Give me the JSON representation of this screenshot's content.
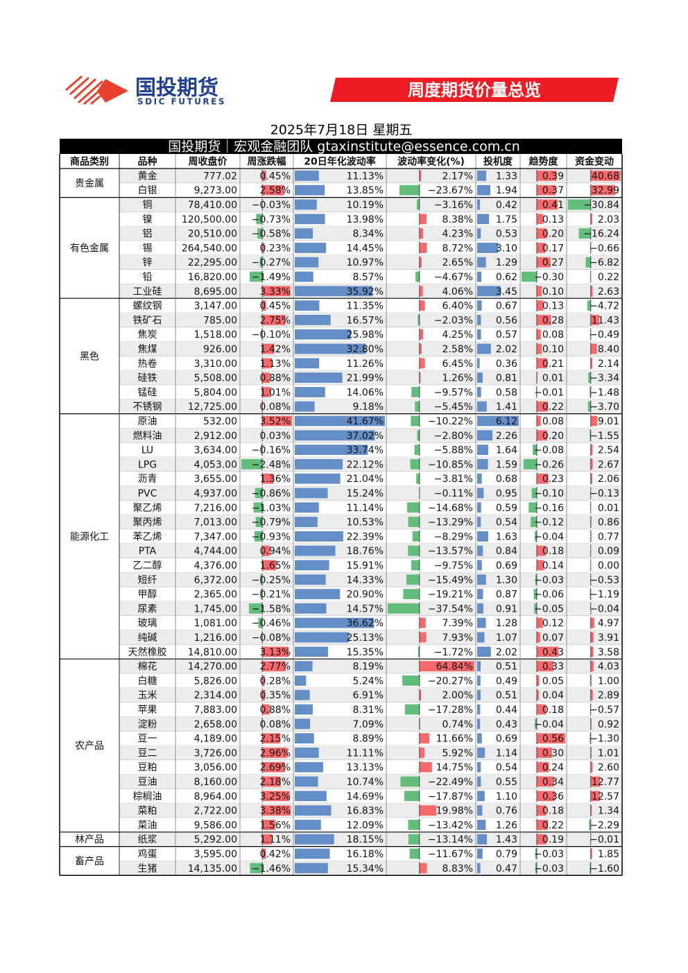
{
  "header": {
    "logo_cn": "国投期货",
    "logo_en": "SDIC FUTURES",
    "banner": "周度期货价量总览",
    "date": "2025年7月18日 星期五",
    "team": "国投期货｜宏观金融团队 gtaxinstitute@essence.com.cn"
  },
  "table": {
    "columns": [
      "商品类别",
      "品种",
      "周收盘价",
      "周涨跌幅",
      "20日年化波动率",
      "波动率变化(%)",
      "投机度",
      "趋势度",
      "资金变动"
    ],
    "groups": [
      {
        "category": "贵金属",
        "rows": [
          [
            "黄金",
            "777.02",
            "0.45%",
            "11.13%",
            "2.17%",
            "1.33",
            "0.39",
            "40.68"
          ],
          [
            "白银",
            "9,273.00",
            "2.58%",
            "13.85%",
            "−23.67%",
            "1.94",
            "0.37",
            "32.99"
          ]
        ]
      },
      {
        "category": "有色金属",
        "rows": [
          [
            "铜",
            "78,410.00",
            "−0.03%",
            "10.19%",
            "−3.16%",
            "0.42",
            "0.41",
            "−30.84"
          ],
          [
            "镍",
            "120,500.00",
            "−0.73%",
            "13.98%",
            "8.38%",
            "1.75",
            "0.13",
            "2.03"
          ],
          [
            "铝",
            "20,510.00",
            "−0.58%",
            "8.34%",
            "4.23%",
            "0.53",
            "0.20",
            "−16.24"
          ],
          [
            "锡",
            "264,540.00",
            "0.23%",
            "14.45%",
            "8.72%",
            "3.10",
            "0.17",
            "−0.66"
          ],
          [
            "锌",
            "22,295.00",
            "−0.27%",
            "10.97%",
            "2.65%",
            "1.29",
            "0.27",
            "−6.82"
          ],
          [
            "铅",
            "16,820.00",
            "−1.49%",
            "8.57%",
            "−4.67%",
            "0.62",
            "−0.30",
            "0.22"
          ],
          [
            "工业硅",
            "8,695.00",
            "3.33%",
            "35.92%",
            "4.06%",
            "3.45",
            "0.10",
            "2.63"
          ]
        ]
      },
      {
        "category": "黑色",
        "rows": [
          [
            "螺纹钢",
            "3,147.00",
            "0.45%",
            "11.35%",
            "6.40%",
            "0.67",
            "0.13",
            "−4.72"
          ],
          [
            "铁矿石",
            "785.00",
            "2.75%",
            "16.57%",
            "−2.03%",
            "0.56",
            "0.28",
            "11.43"
          ],
          [
            "焦炭",
            "1,518.00",
            "−0.10%",
            "25.98%",
            "4.25%",
            "0.57",
            "0.08",
            "−0.49"
          ],
          [
            "焦煤",
            "926.00",
            "1.42%",
            "32.80%",
            "2.58%",
            "2.02",
            "0.10",
            "8.40"
          ],
          [
            "热卷",
            "3,310.00",
            "1.13%",
            "11.26%",
            "6.45%",
            "0.36",
            "0.21",
            "2.14"
          ],
          [
            "硅铁",
            "5,508.00",
            "0.88%",
            "21.99%",
            "1.26%",
            "0.81",
            "0.01",
            "−3.34"
          ],
          [
            "锰硅",
            "5,804.00",
            "1.01%",
            "14.06%",
            "−9.57%",
            "0.58",
            "−0.01",
            "−1.48"
          ],
          [
            "不锈钢",
            "12,725.00",
            "0.08%",
            "9.18%",
            "−5.45%",
            "1.41",
            "0.22",
            "−3.70"
          ]
        ]
      },
      {
        "category": "能源化工",
        "rows": [
          [
            "原油",
            "532.00",
            "3.52%",
            "41.67%",
            "−10.22%",
            "6.12",
            "0.08",
            "9.01"
          ],
          [
            "燃料油",
            "2,912.00",
            "0.03%",
            "37.02%",
            "−2.80%",
            "2.26",
            "0.20",
            "−1.55"
          ],
          [
            "LU",
            "3,634.00",
            "−0.16%",
            "33.74%",
            "−5.88%",
            "1.64",
            "−0.08",
            "2.54"
          ],
          [
            "LPG",
            "4,053.00",
            "−2.48%",
            "22.12%",
            "−10.85%",
            "1.59",
            "−0.26",
            "2.67"
          ],
          [
            "沥青",
            "3,655.00",
            "1.36%",
            "21.04%",
            "−3.81%",
            "0.68",
            "0.23",
            "2.06"
          ],
          [
            "PVC",
            "4,937.00",
            "−0.86%",
            "15.24%",
            "−0.11%",
            "0.95",
            "−0.10",
            "−0.13"
          ],
          [
            "聚乙烯",
            "7,216.00",
            "−1.03%",
            "11.14%",
            "−14.68%",
            "0.59",
            "−0.16",
            "0.01"
          ],
          [
            "聚丙烯",
            "7,013.00",
            "−0.79%",
            "10.53%",
            "−13.29%",
            "0.54",
            "−0.12",
            "0.86"
          ],
          [
            "苯乙烯",
            "7,347.00",
            "−0.93%",
            "22.39%",
            "−8.29%",
            "1.63",
            "−0.04",
            "0.77"
          ],
          [
            "PTA",
            "4,744.00",
            "0.94%",
            "18.76%",
            "−13.57%",
            "0.84",
            "0.18",
            "0.09"
          ],
          [
            "乙二醇",
            "4,376.00",
            "1.65%",
            "15.91%",
            "−9.75%",
            "0.69",
            "0.14",
            "0.00"
          ],
          [
            "短纤",
            "6,372.00",
            "−0.25%",
            "14.33%",
            "−15.49%",
            "1.30",
            "−0.03",
            "−0.53"
          ],
          [
            "甲醇",
            "2,365.00",
            "−0.21%",
            "20.90%",
            "−19.21%",
            "0.87",
            "−0.06",
            "−1.19"
          ],
          [
            "尿素",
            "1,745.00",
            "−1.58%",
            "14.57%",
            "−37.54%",
            "0.91",
            "−0.05",
            "−0.04"
          ],
          [
            "玻璃",
            "1,081.00",
            "−0.46%",
            "36.62%",
            "7.39%",
            "1.28",
            "0.12",
            "4.97"
          ],
          [
            "纯碱",
            "1,216.00",
            "−0.08%",
            "25.13%",
            "7.93%",
            "1.07",
            "0.07",
            "3.91"
          ],
          [
            "天然橡胶",
            "14,810.00",
            "3.13%",
            "15.35%",
            "−1.72%",
            "2.02",
            "0.43",
            "3.58"
          ]
        ]
      },
      {
        "category": "农产品",
        "rows": [
          [
            "棉花",
            "14,270.00",
            "2.77%",
            "8.19%",
            "64.84%",
            "0.51",
            "0.33",
            "4.03"
          ],
          [
            "白糖",
            "5,826.00",
            "0.28%",
            "5.24%",
            "−20.27%",
            "0.49",
            "0.05",
            "1.00"
          ],
          [
            "玉米",
            "2,314.00",
            "0.35%",
            "6.91%",
            "2.00%",
            "0.51",
            "0.04",
            "2.89"
          ],
          [
            "苹果",
            "7,883.00",
            "0.88%",
            "8.31%",
            "−17.28%",
            "0.44",
            "0.18",
            "−0.57"
          ],
          [
            "淀粉",
            "2,658.00",
            "0.08%",
            "7.09%",
            "0.74%",
            "0.43",
            "−0.04",
            "0.92"
          ],
          [
            "豆一",
            "4,189.00",
            "2.15%",
            "8.89%",
            "11.66%",
            "0.69",
            "0.56",
            "−1.30"
          ],
          [
            "豆二",
            "3,726.00",
            "2.96%",
            "11.11%",
            "5.92%",
            "1.14",
            "0.30",
            "1.01"
          ],
          [
            "豆粕",
            "3,056.00",
            "2.69%",
            "13.13%",
            "14.75%",
            "0.54",
            "0.24",
            "2.60"
          ],
          [
            "豆油",
            "8,160.00",
            "2.18%",
            "10.74%",
            "−22.49%",
            "0.55",
            "0.34",
            "12.77"
          ],
          [
            "棕榈油",
            "8,964.00",
            "3.25%",
            "14.69%",
            "−17.87%",
            "1.10",
            "0.36",
            "12.57"
          ],
          [
            "菜粕",
            "2,722.00",
            "3.38%",
            "16.83%",
            "19.98%",
            "0.76",
            "0.18",
            "1.34"
          ],
          [
            "菜油",
            "9,586.00",
            "1.56%",
            "12.09%",
            "−13.42%",
            "1.26",
            "0.22",
            "−2.29"
          ]
        ]
      },
      {
        "category": "林产品",
        "rows": [
          [
            "纸浆",
            "5,292.00",
            "1.11%",
            "18.15%",
            "−13.14%",
            "1.43",
            "0.19",
            "−0.01"
          ]
        ]
      },
      {
        "category": "畜产品",
        "rows": [
          [
            "鸡蛋",
            "3,595.00",
            "0.42%",
            "16.18%",
            "−11.67%",
            "0.79",
            "−0.03",
            "1.85"
          ],
          [
            "生猪",
            "14,135.00",
            "−1.46%",
            "15.34%",
            "8.83%",
            "0.47",
            "−0.03",
            "−1.60"
          ]
        ]
      }
    ]
  }
}
